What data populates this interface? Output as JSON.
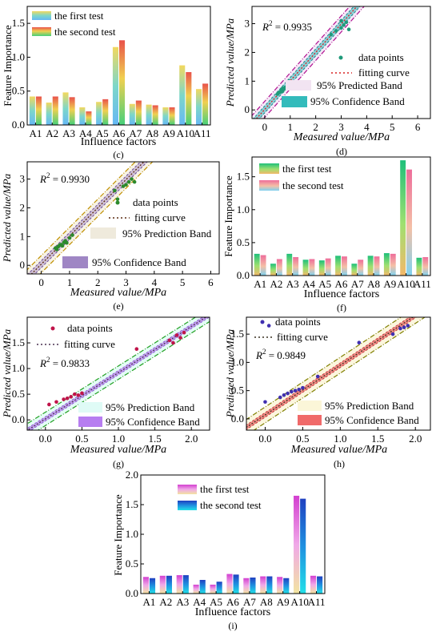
{
  "colors": {
    "legend_c_first": "#6fc8f0",
    "legend_c_second": "#e9524a",
    "legend_f_first": "#23c37a",
    "legend_f_second": "#ee6d9a",
    "legend_i_first": "#d33fd0",
    "legend_i_second": "#1f66d6",
    "d_points": "#1f9a7a",
    "e_points": "#2c8a2c",
    "g_points": "#c0144a",
    "h_points": "#4030b0",
    "fit_d": "#d82020",
    "fit_e": "#5a2a10",
    "fit_g": "#4a3050",
    "fit_h": "#3a3020",
    "pred_band_d": "#b01090",
    "pred_band_e": "#c09000",
    "pred_band_g": "#20a020",
    "pred_band_h": "#808000",
    "conf_band_d": "#33bbbb",
    "conf_band_e": "#9f86c4",
    "conf_band_g": "#b77ef0",
    "conf_band_h": "#f06a6a"
  },
  "chart_data": [
    {
      "panel_label": "(c)",
      "type": "bar",
      "xlabel": "Influence factors",
      "ylabel": "Feature Importance",
      "ylim": [
        0,
        1.75
      ],
      "yticks": [
        "0.0",
        "0.5",
        "1.0",
        "1.5"
      ],
      "categories": [
        "A1",
        "A2",
        "A3",
        "A4",
        "A5",
        "A6",
        "A7",
        "A8",
        "A9",
        "A10",
        "A11"
      ],
      "series": [
        {
          "name": "the first test",
          "values": [
            0.42,
            0.33,
            0.48,
            0.26,
            0.34,
            1.15,
            0.31,
            0.3,
            0.26,
            0.88,
            0.53
          ]
        },
        {
          "name": "the second test",
          "values": [
            0.42,
            0.42,
            0.41,
            0.2,
            0.38,
            1.25,
            0.36,
            0.29,
            0.26,
            0.78,
            0.61
          ]
        }
      ]
    },
    {
      "panel_label": "(d)",
      "type": "scatter",
      "xlabel": "Measured value/MPa",
      "ylabel": "Predicted value/MPa",
      "xlim": [
        -0.5,
        6.5
      ],
      "ylim": [
        -0.3,
        3.6
      ],
      "xticks": [
        "0",
        "1",
        "2",
        "3",
        "4",
        "5",
        "6"
      ],
      "yticks": [
        "0",
        "1",
        "2",
        "3"
      ],
      "r2_label": "R",
      "r2_sup": "2",
      "r2_value": " = 0.9935",
      "legend": [
        "data points",
        "fitting curve",
        "95% Predicted Band",
        "95% Confidence Band"
      ],
      "points": [
        [
          0.5,
          0.55
        ],
        [
          0.55,
          0.6
        ],
        [
          0.6,
          0.62
        ],
        [
          0.65,
          0.68
        ],
        [
          0.7,
          0.65
        ],
        [
          0.75,
          0.72
        ],
        [
          0.8,
          0.78
        ],
        [
          0.85,
          0.8
        ],
        [
          0.9,
          0.86
        ],
        [
          1.0,
          0.95
        ],
        [
          0.7,
          0.75
        ],
        [
          0.95,
          1.0
        ],
        [
          2.6,
          2.62
        ],
        [
          2.8,
          2.75
        ],
        [
          3.0,
          2.85
        ],
        [
          3.1,
          2.95
        ],
        [
          3.2,
          3.05
        ],
        [
          3.0,
          3.1
        ],
        [
          3.3,
          2.8
        ]
      ],
      "fit": {
        "slope": 0.99,
        "intercept": 0.02
      },
      "pred_halfwidth": 0.28,
      "conf_halfwidth": 0.12
    },
    {
      "panel_label": "(e)",
      "type": "scatter",
      "xlabel": "Measured value/MPa",
      "ylabel": "Predicted value/MPa",
      "xlim": [
        -0.5,
        6.3
      ],
      "ylim": [
        -0.3,
        3.6
      ],
      "xticks": [
        "0",
        "1",
        "2",
        "3",
        "4",
        "5",
        "6"
      ],
      "yticks": [
        "0",
        "1",
        "2",
        "3"
      ],
      "r2_label": "R",
      "r2_sup": "2",
      "r2_value": " = 0.9930",
      "legend": [
        "data points",
        "fitting curve",
        "95% Prediction Band",
        "95% Confidence Band"
      ],
      "points": [
        [
          0.5,
          0.6
        ],
        [
          0.55,
          0.55
        ],
        [
          0.6,
          0.65
        ],
        [
          0.65,
          0.7
        ],
        [
          0.7,
          0.72
        ],
        [
          0.75,
          0.68
        ],
        [
          0.8,
          0.8
        ],
        [
          0.85,
          0.85
        ],
        [
          0.9,
          0.78
        ],
        [
          1.0,
          0.95
        ],
        [
          1.1,
          1.05
        ],
        [
          2.6,
          2.6
        ],
        [
          2.7,
          2.3
        ],
        [
          2.9,
          2.75
        ],
        [
          3.0,
          2.8
        ],
        [
          3.1,
          2.9
        ],
        [
          3.2,
          3.0
        ],
        [
          3.3,
          2.9
        ]
      ],
      "fit": {
        "slope": 0.98,
        "intercept": 0.04
      },
      "pred_halfwidth": 0.3,
      "conf_halfwidth": 0.12
    },
    {
      "panel_label": "(f)",
      "type": "bar",
      "xlabel": "Influence factors",
      "ylabel": "Feature Importance",
      "ylim": [
        0,
        1.8
      ],
      "yticks": [
        "0.0",
        "0.5",
        "1.0",
        "1.5"
      ],
      "categories": [
        "A1",
        "A2",
        "A3",
        "A4",
        "A5",
        "A6",
        "A7",
        "A8",
        "A9",
        "A10",
        "A11"
      ],
      "series": [
        {
          "name": "the first test",
          "values": [
            0.33,
            0.18,
            0.33,
            0.24,
            0.23,
            0.3,
            0.18,
            0.3,
            0.34,
            1.75,
            0.27
          ]
        },
        {
          "name": "the second test",
          "values": [
            0.31,
            0.25,
            0.28,
            0.25,
            0.26,
            0.29,
            0.24,
            0.29,
            0.33,
            1.61,
            0.28
          ]
        }
      ]
    },
    {
      "panel_label": "(g)",
      "type": "scatter",
      "xlabel": "Measured value/MPa",
      "ylabel": "Predicted value/MPa",
      "xlim": [
        -0.25,
        2.25
      ],
      "ylim": [
        -0.2,
        2.0
      ],
      "xticks": [
        "0.0",
        "0.5",
        "1.0",
        "1.5",
        "2.0"
      ],
      "yticks": [
        "0.0",
        "0.5",
        "1.0",
        "1.5"
      ],
      "r2_label": "R",
      "r2_sup": "2",
      "r2_value": " = 0.9833",
      "legend": [
        "data points",
        "fitting curve",
        "95% Prediction Band",
        "95% Confidence Band"
      ],
      "points": [
        [
          0.05,
          0.3
        ],
        [
          0.15,
          0.35
        ],
        [
          0.25,
          0.4
        ],
        [
          0.3,
          0.42
        ],
        [
          0.35,
          0.45
        ],
        [
          0.4,
          0.5
        ],
        [
          0.45,
          0.48
        ],
        [
          0.5,
          0.52
        ],
        [
          1.25,
          1.38
        ],
        [
          1.7,
          1.55
        ],
        [
          1.8,
          1.65
        ],
        [
          1.85,
          1.6
        ],
        [
          1.9,
          1.7
        ],
        [
          1.75,
          1.5
        ]
      ],
      "fit": {
        "slope": 0.9,
        "intercept": 0.02
      },
      "pred_halfwidth": 0.13,
      "conf_halfwidth": 0.04
    },
    {
      "panel_label": "(h)",
      "type": "scatter",
      "xlabel": "Measured value/MPa",
      "ylabel": "Predicted value/MPa",
      "xlim": [
        -0.25,
        2.2
      ],
      "ylim": [
        -0.2,
        1.8
      ],
      "xticks": [
        "0.0",
        "0.5",
        "1.0",
        "1.5",
        "2.0"
      ],
      "yticks": [
        "0.0",
        "0.5",
        "1.0",
        "1.5"
      ],
      "r2_label": "R",
      "r2_sup": "2",
      "r2_value": " = 0.9849",
      "legend": [
        "data points",
        "fitting curve",
        "95% Prediction Band",
        "95% Confidence Band"
      ],
      "points": [
        [
          0.0,
          0.3
        ],
        [
          0.05,
          1.65
        ],
        [
          0.2,
          0.38
        ],
        [
          0.25,
          0.42
        ],
        [
          0.3,
          0.45
        ],
        [
          0.35,
          0.48
        ],
        [
          0.4,
          0.5
        ],
        [
          0.45,
          0.52
        ],
        [
          0.5,
          0.55
        ],
        [
          0.7,
          0.75
        ],
        [
          1.25,
          1.35
        ],
        [
          1.7,
          1.5
        ],
        [
          1.8,
          1.6
        ],
        [
          1.85,
          1.62
        ],
        [
          1.9,
          1.65
        ]
      ],
      "fit": {
        "slope": 0.88,
        "intercept": 0.07
      },
      "pred_halfwidth": 0.14,
      "conf_halfwidth": 0.04
    },
    {
      "panel_label": "(i)",
      "type": "bar",
      "xlabel": "Influence factors",
      "ylabel": "Feature Importance",
      "ylim": [
        0,
        2.0
      ],
      "yticks": [
        "0.0",
        "0.5",
        "1.0",
        "1.5",
        "2.0"
      ],
      "categories": [
        "A1",
        "A2",
        "A3",
        "A4",
        "A5",
        "A6",
        "A7",
        "A8",
        "A9",
        "A10",
        "A11"
      ],
      "series": [
        {
          "name": "the first test",
          "values": [
            0.28,
            0.3,
            0.31,
            0.15,
            0.15,
            0.33,
            0.26,
            0.29,
            0.28,
            1.65,
            0.3
          ]
        },
        {
          "name": "the second test",
          "values": [
            0.26,
            0.3,
            0.31,
            0.23,
            0.2,
            0.32,
            0.27,
            0.29,
            0.26,
            1.6,
            0.29
          ]
        }
      ]
    }
  ]
}
